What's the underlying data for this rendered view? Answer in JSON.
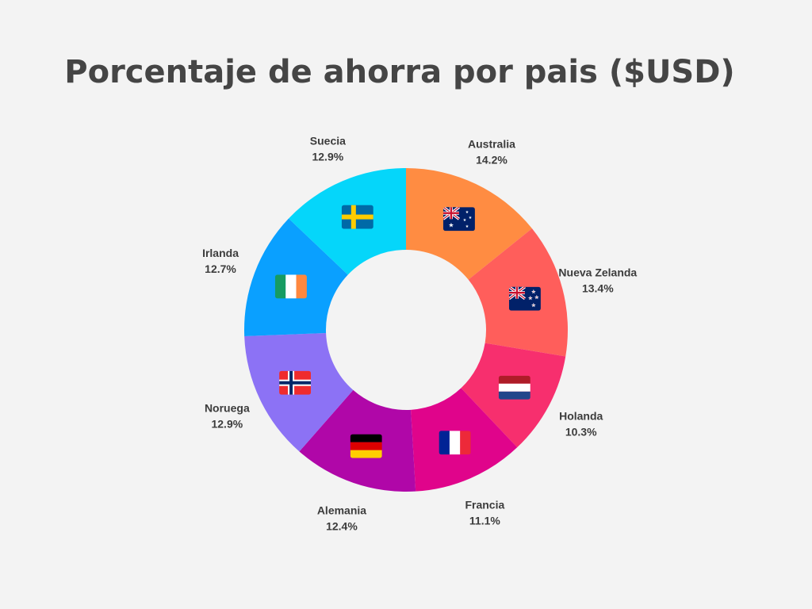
{
  "title": "Porcentaje de ahorra por pais ($USD)",
  "chart_data": {
    "type": "pie",
    "donut": true,
    "title": "Porcentaje de ahorra por pais ($USD)",
    "categories": [
      "Australia",
      "Nueva Zelanda",
      "Holanda",
      "Francia",
      "Alemania",
      "Noruega",
      "Irlanda",
      "Suecia"
    ],
    "values": [
      14.2,
      13.4,
      10.3,
      11.1,
      12.4,
      12.9,
      12.7,
      12.9
    ],
    "value_labels": [
      "14.2%",
      "13.4%",
      "10.3%",
      "11.1%",
      "12.4%",
      "12.9%",
      "12.7%",
      "12.9%"
    ],
    "colors": [
      "#ff8c42",
      "#ff5e5b",
      "#f72f6e",
      "#e0048b",
      "#b007a8",
      "#8c72f5",
      "#0aa0ff",
      "#05d6fa"
    ],
    "flag_icons": [
      "australia-flag-icon",
      "new-zealand-flag-icon",
      "netherlands-flag-icon",
      "france-flag-icon",
      "germany-flag-icon",
      "norway-flag-icon",
      "ireland-flag-icon",
      "sweden-flag-icon"
    ]
  }
}
